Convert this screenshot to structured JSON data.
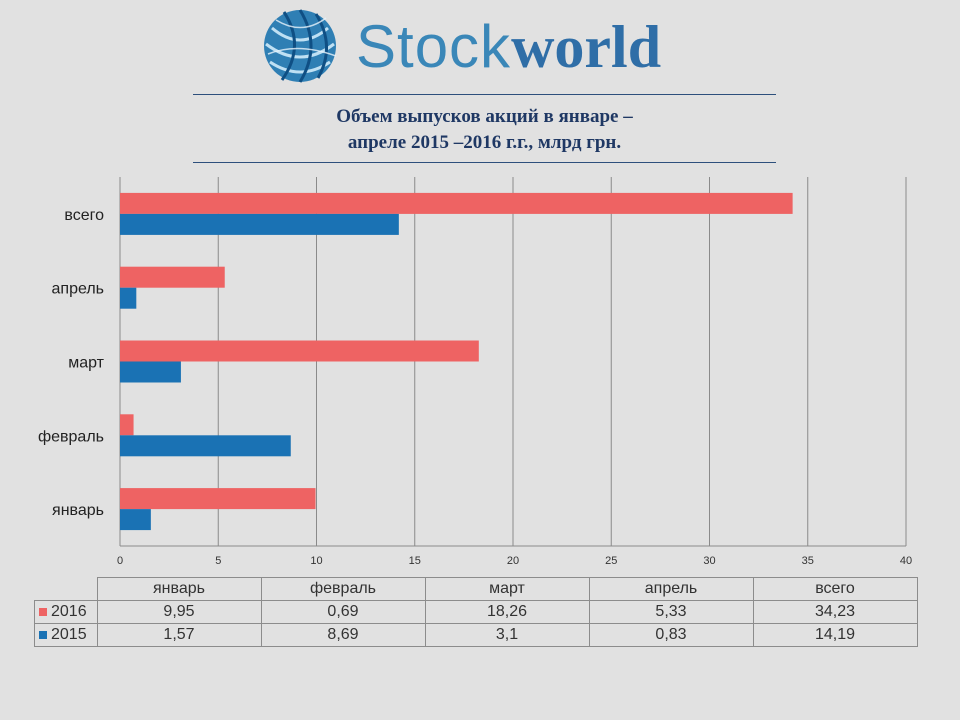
{
  "brand": {
    "name_light": "Stock",
    "name_bold": "world",
    "logo_color": "#3a87b8"
  },
  "title_lines": [
    "Объем выпусков акций в январе –",
    "апреле  2015 –2016 г.г., млрд грн."
  ],
  "chart_data": {
    "type": "bar",
    "orientation": "horizontal",
    "title": "Объем выпусков акций в январе – апреле  2015 –2016 г.г., млрд грн.",
    "categories": [
      "январь",
      "февраль",
      "март",
      "апрель",
      "всего"
    ],
    "series": [
      {
        "name": "2016",
        "color": "#ee6363",
        "values": [
          9.95,
          0.69,
          18.26,
          5.33,
          34.23
        ]
      },
      {
        "name": "2015",
        "color": "#1a72b4",
        "values": [
          1.57,
          8.69,
          3.1,
          0.83,
          14.19
        ]
      }
    ],
    "xlim": [
      0,
      40
    ],
    "xticks": [
      "0",
      "5",
      "10",
      "15",
      "20",
      "25",
      "30",
      "35",
      "40"
    ],
    "grid": true,
    "table": {
      "headers": [
        "январь",
        "февраль",
        "март",
        "апрель",
        "всего"
      ],
      "rows": [
        {
          "label": "2016",
          "values": [
            "9,95",
            "0,69",
            "18,26",
            "5,33",
            "34,23"
          ]
        },
        {
          "label": "2015",
          "values": [
            "1,57",
            "8,69",
            "3,1",
            "0,83",
            "14,19"
          ]
        }
      ]
    }
  }
}
